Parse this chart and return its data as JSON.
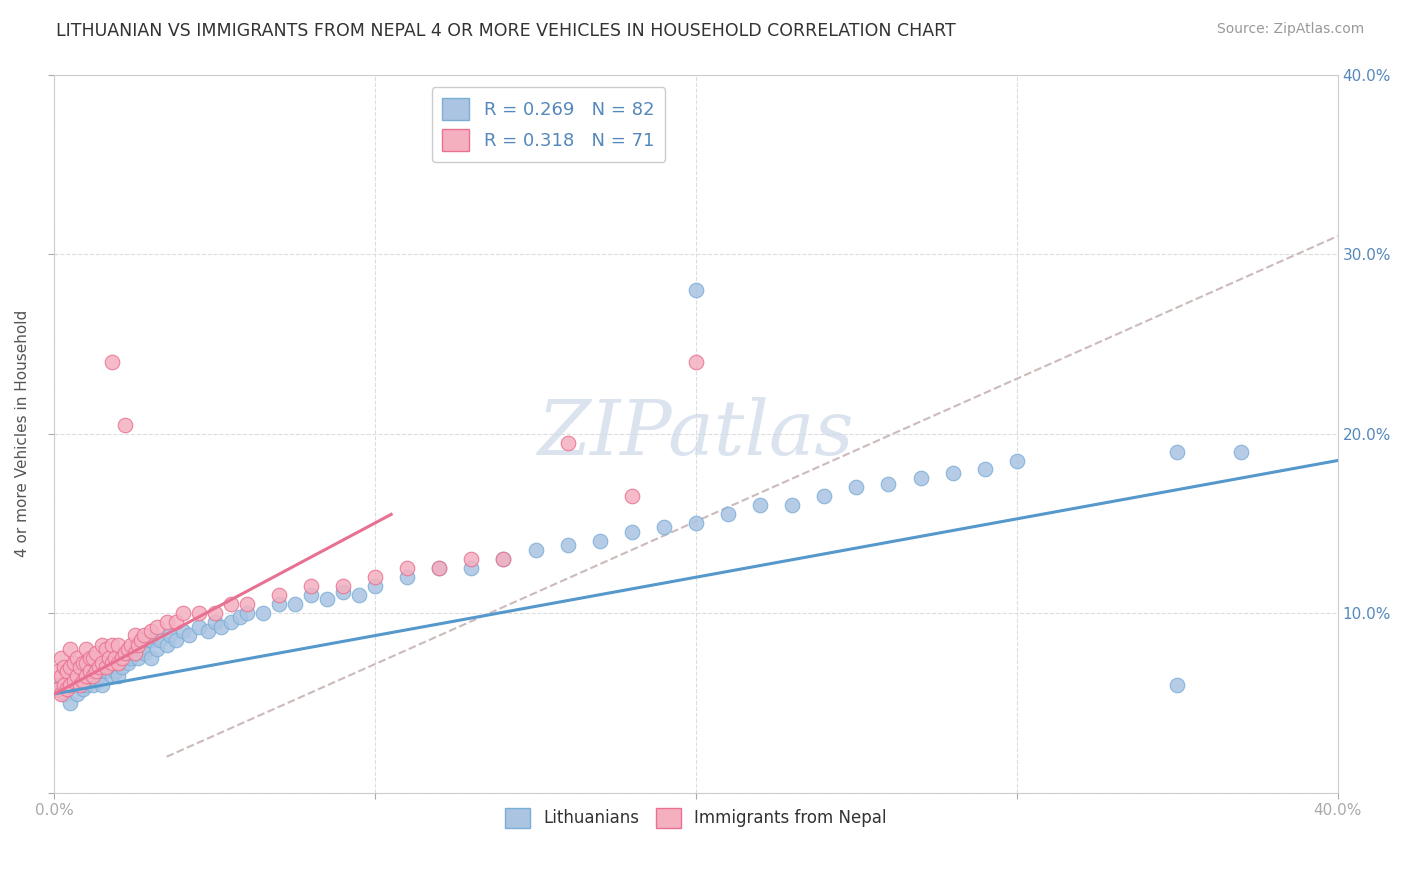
{
  "title": "LITHUANIAN VS IMMIGRANTS FROM NEPAL 4 OR MORE VEHICLES IN HOUSEHOLD CORRELATION CHART",
  "source": "Source: ZipAtlas.com",
  "ylabel": "4 or more Vehicles in Household",
  "xlim": [
    0.0,
    0.4
  ],
  "ylim": [
    0.0,
    0.4
  ],
  "blue_R": 0.269,
  "blue_N": 82,
  "pink_R": 0.318,
  "pink_N": 71,
  "blue_color": "#aac4e2",
  "pink_color": "#f5b0c0",
  "blue_edge_color": "#7aaed6",
  "pink_edge_color": "#e87090",
  "blue_line_color": "#5599cc",
  "pink_line_color": "#e87090",
  "diag_color": "#ccbbbb",
  "watermark_color": "#ccd8e8",
  "blue_scatter_x": [
    0.002,
    0.003,
    0.004,
    0.005,
    0.005,
    0.006,
    0.007,
    0.008,
    0.008,
    0.009,
    0.01,
    0.01,
    0.01,
    0.011,
    0.012,
    0.012,
    0.013,
    0.014,
    0.015,
    0.015,
    0.016,
    0.017,
    0.018,
    0.019,
    0.02,
    0.02,
    0.021,
    0.022,
    0.023,
    0.024,
    0.025,
    0.026,
    0.027,
    0.028,
    0.03,
    0.03,
    0.032,
    0.033,
    0.035,
    0.036,
    0.038,
    0.04,
    0.042,
    0.045,
    0.048,
    0.05,
    0.052,
    0.055,
    0.058,
    0.06,
    0.065,
    0.07,
    0.075,
    0.08,
    0.085,
    0.09,
    0.095,
    0.1,
    0.11,
    0.12,
    0.13,
    0.14,
    0.15,
    0.16,
    0.17,
    0.18,
    0.19,
    0.2,
    0.21,
    0.22,
    0.23,
    0.24,
    0.25,
    0.26,
    0.27,
    0.28,
    0.29,
    0.3,
    0.35,
    0.37,
    0.2,
    0.35
  ],
  "blue_scatter_y": [
    0.06,
    0.055,
    0.065,
    0.05,
    0.07,
    0.06,
    0.055,
    0.065,
    0.07,
    0.058,
    0.06,
    0.065,
    0.07,
    0.062,
    0.06,
    0.068,
    0.063,
    0.065,
    0.06,
    0.072,
    0.068,
    0.07,
    0.065,
    0.068,
    0.065,
    0.075,
    0.07,
    0.075,
    0.072,
    0.075,
    0.078,
    0.075,
    0.08,
    0.078,
    0.075,
    0.085,
    0.08,
    0.085,
    0.082,
    0.088,
    0.085,
    0.09,
    0.088,
    0.092,
    0.09,
    0.095,
    0.092,
    0.095,
    0.098,
    0.1,
    0.1,
    0.105,
    0.105,
    0.11,
    0.108,
    0.112,
    0.11,
    0.115,
    0.12,
    0.125,
    0.125,
    0.13,
    0.135,
    0.138,
    0.14,
    0.145,
    0.148,
    0.15,
    0.155,
    0.16,
    0.16,
    0.165,
    0.17,
    0.172,
    0.175,
    0.178,
    0.18,
    0.185,
    0.19,
    0.19,
    0.28,
    0.06
  ],
  "pink_scatter_x": [
    0.001,
    0.001,
    0.002,
    0.002,
    0.002,
    0.003,
    0.003,
    0.004,
    0.004,
    0.005,
    0.005,
    0.005,
    0.006,
    0.006,
    0.007,
    0.007,
    0.008,
    0.008,
    0.009,
    0.009,
    0.01,
    0.01,
    0.01,
    0.011,
    0.011,
    0.012,
    0.012,
    0.013,
    0.013,
    0.014,
    0.015,
    0.015,
    0.016,
    0.016,
    0.017,
    0.018,
    0.018,
    0.019,
    0.02,
    0.02,
    0.021,
    0.022,
    0.023,
    0.024,
    0.025,
    0.025,
    0.026,
    0.027,
    0.028,
    0.03,
    0.032,
    0.035,
    0.038,
    0.04,
    0.045,
    0.05,
    0.055,
    0.06,
    0.07,
    0.08,
    0.09,
    0.1,
    0.11,
    0.12,
    0.13,
    0.14,
    0.16,
    0.18,
    0.2,
    0.018,
    0.022
  ],
  "pink_scatter_y": [
    0.058,
    0.068,
    0.055,
    0.065,
    0.075,
    0.06,
    0.07,
    0.058,
    0.068,
    0.06,
    0.07,
    0.08,
    0.062,
    0.072,
    0.065,
    0.075,
    0.06,
    0.07,
    0.062,
    0.072,
    0.065,
    0.072,
    0.08,
    0.068,
    0.075,
    0.065,
    0.075,
    0.068,
    0.078,
    0.07,
    0.072,
    0.082,
    0.07,
    0.08,
    0.075,
    0.072,
    0.082,
    0.075,
    0.072,
    0.082,
    0.075,
    0.078,
    0.08,
    0.082,
    0.078,
    0.088,
    0.082,
    0.085,
    0.088,
    0.09,
    0.092,
    0.095,
    0.095,
    0.1,
    0.1,
    0.1,
    0.105,
    0.105,
    0.11,
    0.115,
    0.115,
    0.12,
    0.125,
    0.125,
    0.13,
    0.13,
    0.195,
    0.165,
    0.24,
    0.24,
    0.205
  ],
  "blue_trend": [
    0.0,
    0.4,
    0.055,
    0.185
  ],
  "pink_trend": [
    0.0,
    0.105,
    0.055,
    0.155
  ],
  "diag_line": [
    0.035,
    0.4,
    0.02,
    0.31
  ]
}
